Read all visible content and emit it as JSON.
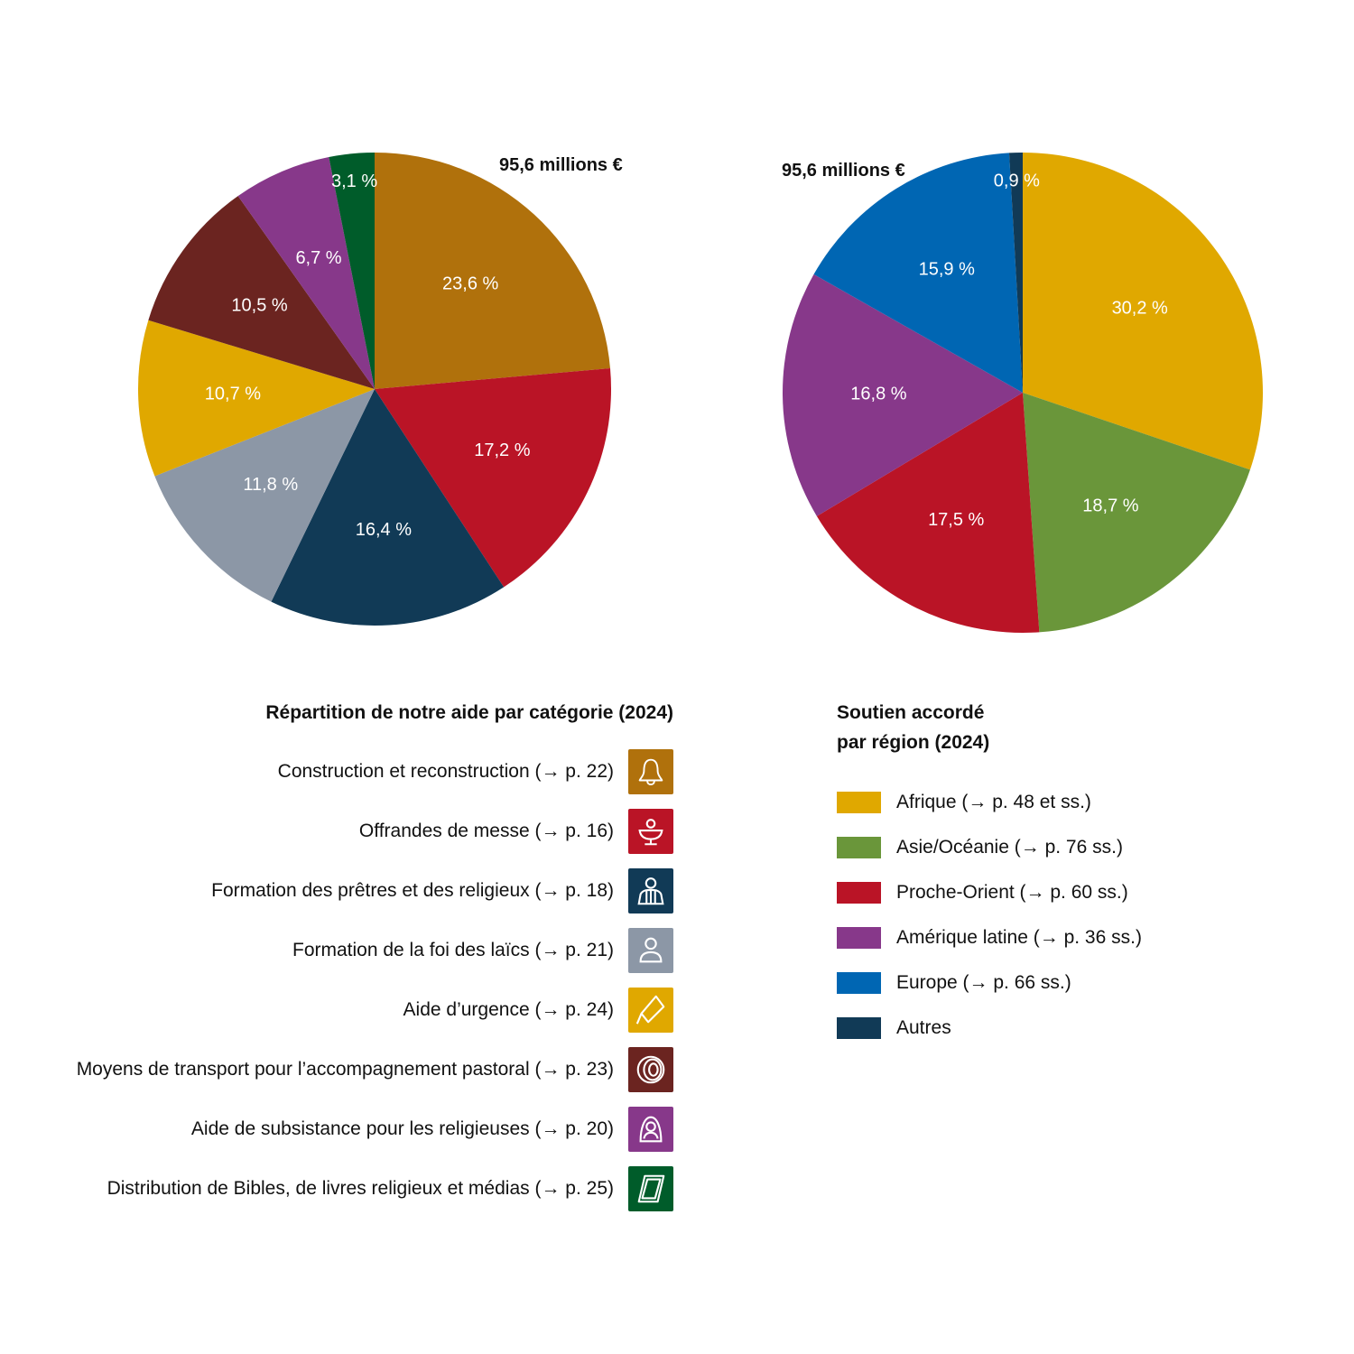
{
  "chart_data": [
    {
      "type": "pie",
      "total_label": "95,6 millions €",
      "title": "Répartition de notre aide par catégorie (2024)",
      "slices": [
        {
          "name": "Construction et reconstruction (→ p. 22)",
          "value": 23.6,
          "label": "23,6 %",
          "color": "#B0710C",
          "icon": "bell-icon"
        },
        {
          "name": "Offrandes de messe (→ p. 16)",
          "value": 17.2,
          "label": "17,2 %",
          "color": "#BA1426",
          "icon": "chalice-icon"
        },
        {
          "name": "Formation des prêtres et des religieux (→ p. 18)",
          "value": 16.4,
          "label": "16,4 %",
          "color": "#113A56",
          "icon": "priest-icon"
        },
        {
          "name": "Formation de la foi des laïcs (→ p. 21)",
          "value": 11.8,
          "label": "11,8 %",
          "color": "#8C97A6",
          "icon": "person-icon"
        },
        {
          "name": "Aide d’urgence (→ p. 24)",
          "value": 10.7,
          "label": "10,7 %",
          "color": "#E0A800",
          "icon": "emergency-icon"
        },
        {
          "name": "Moyens de transport pour l’accompagnement pastoral (→ p. 23)",
          "value": 10.5,
          "label": "10,5 %",
          "color": "#6B2420",
          "icon": "tire-icon"
        },
        {
          "name": "Aide de subsistance pour les religieuses (→ p. 20)",
          "value": 6.7,
          "label": "6,7 %",
          "color": "#87388A",
          "icon": "nun-icon"
        },
        {
          "name": "Distribution de Bibles, de livres religieux et médias (→ p. 25)",
          "value": 3.1,
          "label": "3,1 %",
          "color": "#005C2A",
          "icon": "book-icon"
        }
      ]
    },
    {
      "type": "pie",
      "total_label": "95,6 millions €",
      "title": "Soutien accordé par région (2024)",
      "title_lines": [
        "Soutien accordé",
        "par région (2024)"
      ],
      "slices": [
        {
          "name": "Afrique (→ p. 48 et ss.)",
          "value": 30.2,
          "label": "30,2 %",
          "color": "#E0A800"
        },
        {
          "name": "Asie/Océanie (→ p. 76 ss.)",
          "value": 18.7,
          "label": "18,7 %",
          "color": "#6A963A"
        },
        {
          "name": "Proche-Orient (→ p. 60 ss.)",
          "value": 17.5,
          "label": "17,5 %",
          "color": "#BA1426"
        },
        {
          "name": "Amérique latine (→ p. 36 ss.)",
          "value": 16.8,
          "label": "16,8 %",
          "color": "#87388A"
        },
        {
          "name": "Europe (→ p. 66 ss.)",
          "value": 15.9,
          "label": "15,9 %",
          "color": "#0066B3"
        },
        {
          "name": "Autres",
          "value": 0.9,
          "label": "0,9 %",
          "color": "#113A56"
        }
      ]
    }
  ]
}
